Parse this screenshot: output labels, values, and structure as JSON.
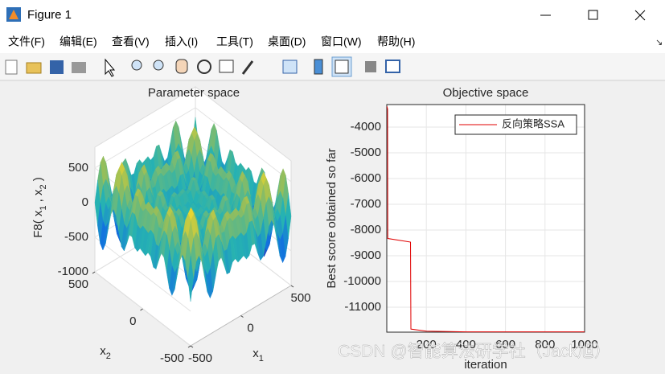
{
  "window": {
    "title": "Figure 1",
    "menu": [
      "文件(F)",
      "编辑(E)",
      "查看(V)",
      "插入(I)",
      "工具(T)",
      "桌面(D)",
      "窗口(W)",
      "帮助(H)"
    ]
  },
  "watermark": "CSDN @智能算法研学社（Jack旭）",
  "chart_data": [
    {
      "type": "surface3d",
      "title": "Parameter space",
      "zlabel": [
        "F8( x",
        "1",
        " , x",
        "2",
        " )"
      ],
      "xlabel": [
        "x",
        "1"
      ],
      "ylabel": [
        "x",
        "2"
      ],
      "xlim": [
        -500,
        500
      ],
      "ylim": [
        -500,
        500
      ],
      "zlim": [
        -1000,
        800
      ],
      "xticks": [
        -500,
        0,
        500
      ],
      "yticks": [
        -500,
        0,
        500
      ],
      "zticks": [
        -1000,
        -500,
        0,
        500
      ]
    },
    {
      "type": "line",
      "title": "Objective space",
      "xlabel": "iteration",
      "ylabel": "Best score obtained so far",
      "x": [
        1,
        4,
        5,
        120,
        122,
        200,
        400,
        1000
      ],
      "series": [
        {
          "name": "反向策略SSA",
          "color": "#e00000",
          "values": [
            -3200,
            -3300,
            -8330,
            -8470,
            -11850,
            -11930,
            -11960,
            -11960
          ]
        }
      ],
      "xlim": [
        0,
        1000
      ],
      "ylim": [
        -11970,
        -3125
      ],
      "xticks": [
        200,
        400,
        600,
        800,
        1000
      ],
      "yticks": [
        -11000,
        -10000,
        -9000,
        -8000,
        -7000,
        -6000,
        -5000,
        -4000
      ],
      "grid": true,
      "legend": "top-right"
    }
  ]
}
